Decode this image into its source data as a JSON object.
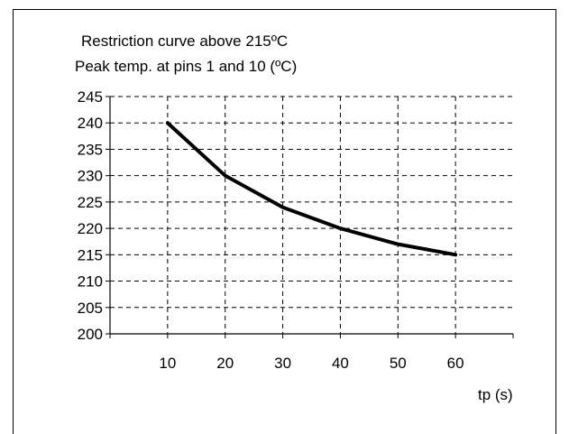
{
  "chart_data": {
    "type": "line",
    "title": "Restriction curve above 215ºC",
    "ylabel": "Peak temp. at pins 1 and 10  (ºC)",
    "xlabel": "tp (s)",
    "x": [
      10,
      20,
      30,
      40,
      50,
      60
    ],
    "y": [
      240,
      230,
      224,
      220,
      217,
      215
    ],
    "xlim": [
      0,
      70
    ],
    "ylim": [
      200,
      245
    ],
    "yticks": [
      200,
      205,
      210,
      215,
      220,
      225,
      230,
      235,
      240,
      245
    ],
    "xticks": [
      10,
      20,
      30,
      40,
      50,
      60
    ],
    "grid": "dashed",
    "line_color": "#000000"
  }
}
